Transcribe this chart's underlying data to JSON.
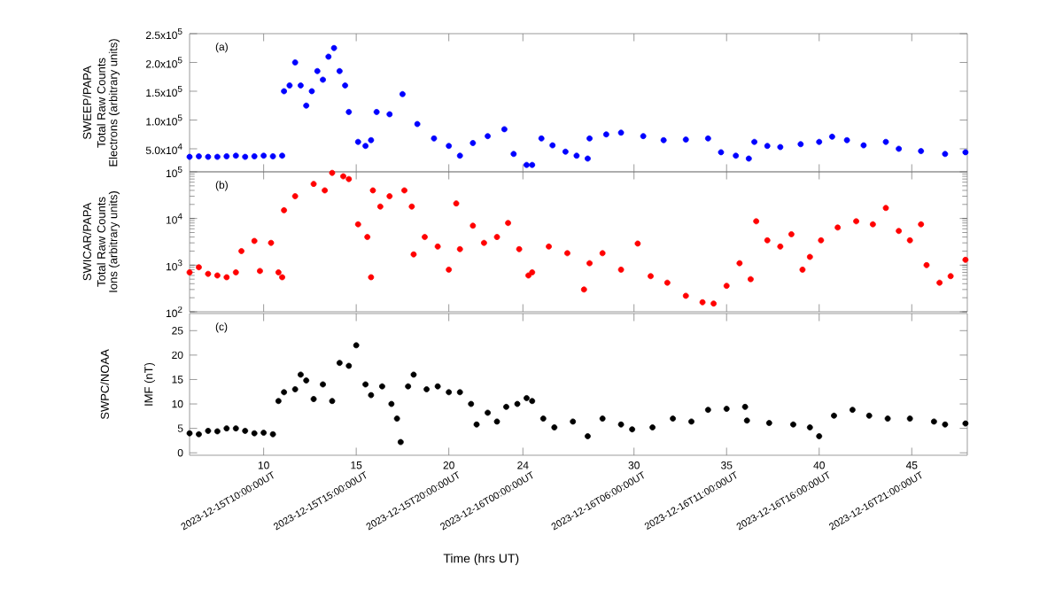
{
  "chart_data": [
    {
      "type": "scatter",
      "ylabel": "Electrons (arbitrary units)",
      "annotations": [
        "(a)",
        "SWEEP/PAPA",
        "Total Raw Counts"
      ],
      "xlim": [
        6,
        48
      ],
      "xticks": [
        10,
        15,
        20,
        24,
        30,
        35,
        40,
        45
      ],
      "ylim": [
        10000,
        250000
      ],
      "yticks": [
        {
          "value": 50000,
          "label": "5.0x10$^{4}$"
        },
        {
          "value": 100000,
          "label": "1.0x10$^{5}$"
        },
        {
          "value": 150000,
          "label": "1.5x10$^{5}$"
        },
        {
          "value": 200000,
          "label": "2.0x10$^{5}$"
        },
        {
          "value": 250000,
          "label": "2.5x10$^{5}$"
        }
      ],
      "tick_labels": "y",
      "marker": "circle",
      "x": [
        6,
        6.5,
        7,
        7.5,
        8,
        8.5,
        9,
        9.5,
        10,
        10.5,
        11,
        11.1,
        11.4,
        11.7,
        12.0,
        12.3,
        12.6,
        12.9,
        13.2,
        13.5,
        13.8,
        14.1,
        14.4,
        14.6,
        15.1,
        15.5,
        15.8,
        16.1,
        16.8,
        17.5,
        18.3,
        19.2,
        20.0,
        20.6,
        21.3,
        22.1,
        23.0,
        23.5,
        24.2,
        24.5,
        25.0,
        25.6,
        26.3,
        26.9,
        27.5,
        27.6,
        28.5,
        29.3,
        30.5,
        31.6,
        32.8,
        34.0,
        34.7,
        35.5,
        36.2,
        36.5,
        37.2,
        37.9,
        39.0,
        40.0,
        40.7,
        41.5,
        42.4,
        43.6,
        44.3,
        45.5,
        46.8,
        47.9
      ],
      "series": [
        {
          "color": "#0000ff",
          "values": [
            36000,
            37000,
            36000,
            36000,
            37000,
            38000,
            36000,
            37000,
            38000,
            37000,
            38000,
            150000,
            160000,
            200000,
            160000,
            125000,
            150000,
            185000,
            170000,
            210000,
            225000,
            185000,
            160000,
            114000,
            62000,
            55000,
            65000,
            114000,
            110000,
            145000,
            93000,
            68000,
            55000,
            38000,
            60000,
            72000,
            84000,
            41000,
            22000,
            22000,
            68000,
            56000,
            45000,
            38000,
            33000,
            68000,
            75000,
            78000,
            72000,
            65000,
            66000,
            68000,
            44000,
            38000,
            33000,
            62000,
            55000,
            53000,
            58000,
            62000,
            71000,
            65000,
            56000,
            62000,
            50000,
            46000,
            41000,
            44000
          ]
        }
      ]
    },
    {
      "type": "scatter",
      "ylabel": "Ions (arbitrary units)",
      "annotations": [
        "(b)",
        "SWICAR/PAPA",
        "Total Raw Counts"
      ],
      "log": true,
      "xlim": [
        6,
        48
      ],
      "xticks": [
        10,
        15,
        20,
        24,
        30,
        35,
        40,
        45
      ],
      "ylim": [
        100,
        100000
      ],
      "yticks": [
        {
          "value": 100,
          "label": "10$^{2}$"
        },
        {
          "value": 1000,
          "label": "10$^{3}$"
        },
        {
          "value": 10000,
          "label": "10$^{4}$"
        },
        {
          "value": 100000,
          "label": "10$^{5}$"
        }
      ],
      "tick_labels": "y",
      "marker": "circle",
      "x": [
        6.0,
        6.5,
        7.0,
        7.5,
        8.0,
        8.5,
        8.8,
        9.5,
        9.8,
        10.4,
        10.8,
        11.0,
        11.1,
        11.7,
        12.7,
        13.3,
        13.7,
        14.3,
        14.6,
        15.1,
        15.6,
        15.8,
        15.9,
        16.3,
        16.8,
        17.6,
        18.0,
        18.1,
        18.7,
        19.4,
        20.0,
        20.4,
        20.6,
        21.3,
        21.9,
        22.6,
        23.2,
        23.8,
        24.3,
        24.5,
        25.4,
        26.4,
        27.3,
        27.6,
        28.3,
        29.3,
        30.2,
        30.9,
        31.8,
        32.8,
        33.7,
        34.3,
        35.0,
        35.7,
        36.3,
        36.6,
        37.2,
        37.9,
        38.5,
        39.1,
        39.5,
        40.1,
        41.0,
        42.0,
        42.9,
        43.6,
        44.3,
        44.9,
        45.5,
        45.8,
        46.5,
        47.1,
        47.9
      ],
      "series": [
        {
          "color": "#ff0000",
          "values": [
            700,
            900,
            650,
            600,
            550,
            700,
            2000,
            3300,
            750,
            3000,
            700,
            550,
            15000,
            30000,
            55000,
            40000,
            95000,
            80000,
            70000,
            7500,
            4000,
            550,
            40000,
            18000,
            30000,
            40000,
            18000,
            1700,
            4000,
            2500,
            800,
            21000,
            2200,
            7000,
            3000,
            4000,
            8000,
            2200,
            600,
            700,
            2500,
            1800,
            300,
            1100,
            1800,
            800,
            2900,
            580,
            420,
            220,
            160,
            150,
            360,
            1100,
            500,
            8700,
            3400,
            2500,
            4600,
            800,
            1500,
            3400,
            6400,
            8700,
            7500,
            16800,
            5400,
            3400,
            7500,
            1000,
            420,
            580,
            1300
          ]
        }
      ]
    },
    {
      "type": "scatter",
      "ylabel": "IMF (nT)",
      "xlabel": "Time (hrs UT)",
      "annotations": [
        "(c)",
        "SWPC/NOAA",
        "2023-12-15T10:00:00UT",
        "2023-12-15T15:00:00UT",
        "2023-12-15T20:00:00UT",
        "2023-12-16T00:00:00UT",
        "2023-12-16T06:00:00UT",
        "2023-12-16T11:00:00UT",
        "2023-12-16T16:00:00UT",
        "2023-12-16T21:00:00UT"
      ],
      "xlim": [
        6,
        48
      ],
      "xticks": [
        10,
        15,
        20,
        24,
        30,
        35,
        40,
        45
      ],
      "ylim": [
        -0.5,
        28.5
      ],
      "yticks": [
        0,
        5,
        10,
        15,
        20,
        25
      ],
      "marker": "circle",
      "x": [
        6,
        6.5,
        7,
        7.5,
        8,
        8.5,
        9,
        9.5,
        10,
        10.5,
        10.8,
        11.1,
        11.7,
        12.0,
        12.3,
        12.7,
        13.2,
        13.7,
        14.1,
        14.6,
        15.0,
        15.5,
        15.8,
        16.4,
        16.9,
        17.2,
        17.4,
        17.8,
        18.1,
        18.8,
        19.4,
        20.0,
        20.6,
        21.2,
        21.5,
        22.1,
        22.6,
        23.1,
        23.7,
        24.2,
        24.5,
        25.1,
        25.7,
        26.7,
        27.5,
        28.3,
        29.3,
        29.9,
        31.0,
        32.1,
        33.1,
        34.0,
        35.0,
        36.0,
        36.1,
        37.3,
        38.6,
        39.5,
        40.0,
        40.8,
        41.8,
        42.7,
        43.7,
        44.9,
        46.2,
        46.8,
        47.9
      ],
      "series": [
        {
          "color": "#000000",
          "values": [
            4,
            3.8,
            4.5,
            4.4,
            5,
            5,
            4.5,
            4,
            4.1,
            3.8,
            10.6,
            12.4,
            13,
            16,
            14.8,
            11,
            14,
            10.6,
            18.4,
            17.8,
            22,
            14,
            11.8,
            13.6,
            10,
            7,
            2.2,
            13.6,
            16,
            13,
            13.6,
            12.4,
            12.4,
            10,
            5.8,
            8.2,
            6.4,
            9.4,
            10,
            11.2,
            10.6,
            7,
            5.2,
            6.4,
            3.4,
            7,
            5.8,
            4.8,
            5.2,
            7,
            6.4,
            8.8,
            9,
            9.4,
            6.6,
            6.1,
            5.8,
            5.2,
            3.4,
            7.6,
            8.8,
            7.6,
            7,
            7,
            6.4,
            5.8,
            6
          ]
        }
      ]
    }
  ]
}
